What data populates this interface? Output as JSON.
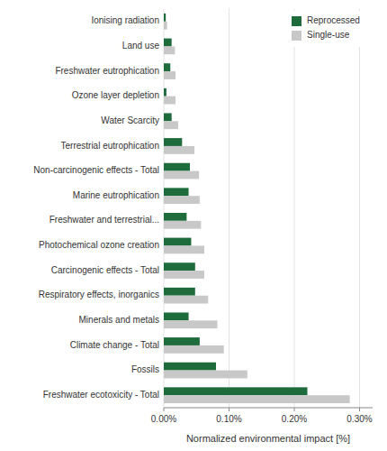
{
  "chart_data": {
    "type": "bar",
    "orientation": "horizontal",
    "categories": [
      "Freshwater ecotoxicity - Total",
      "Fossils",
      "Climate change - Total",
      "Minerals and metals",
      "Respiratory effects, inorganics",
      "Carcinogenic effects - Total",
      "Photochemical ozone creation",
      "Freshwater and terrestrial...",
      "Marine eutrophication",
      "Non-carcinogenic effects - Total",
      "Terrestrial eutrophication",
      "Water Scarcity",
      "Ozone layer depletion",
      "Freshwater eutrophication",
      "Land use",
      "Ionising radiation"
    ],
    "series": [
      {
        "name": "Reprocessed",
        "color": "#1e6b3c",
        "values": [
          0.22,
          0.08,
          0.055,
          0.038,
          0.048,
          0.048,
          0.042,
          0.035,
          0.038,
          0.04,
          0.028,
          0.012,
          0.004,
          0.01,
          0.012,
          0.003
        ]
      },
      {
        "name": "Single-use",
        "color": "#c8c8c8",
        "values": [
          0.285,
          0.128,
          0.092,
          0.082,
          0.068,
          0.062,
          0.062,
          0.057,
          0.055,
          0.054,
          0.047,
          0.022,
          0.018,
          0.018,
          0.017,
          0.005
        ]
      }
    ],
    "xlabel": "Normalized environmental impact [%]",
    "xlim": [
      0.0,
      0.32
    ],
    "xticks": [
      {
        "value": 0.0,
        "label": "0.00%"
      },
      {
        "value": 0.1,
        "label": "0.10%"
      },
      {
        "value": 0.2,
        "label": "0.20%"
      },
      {
        "value": 0.3,
        "label": "0.30%"
      }
    ],
    "grid": true,
    "legend": "upper right"
  }
}
